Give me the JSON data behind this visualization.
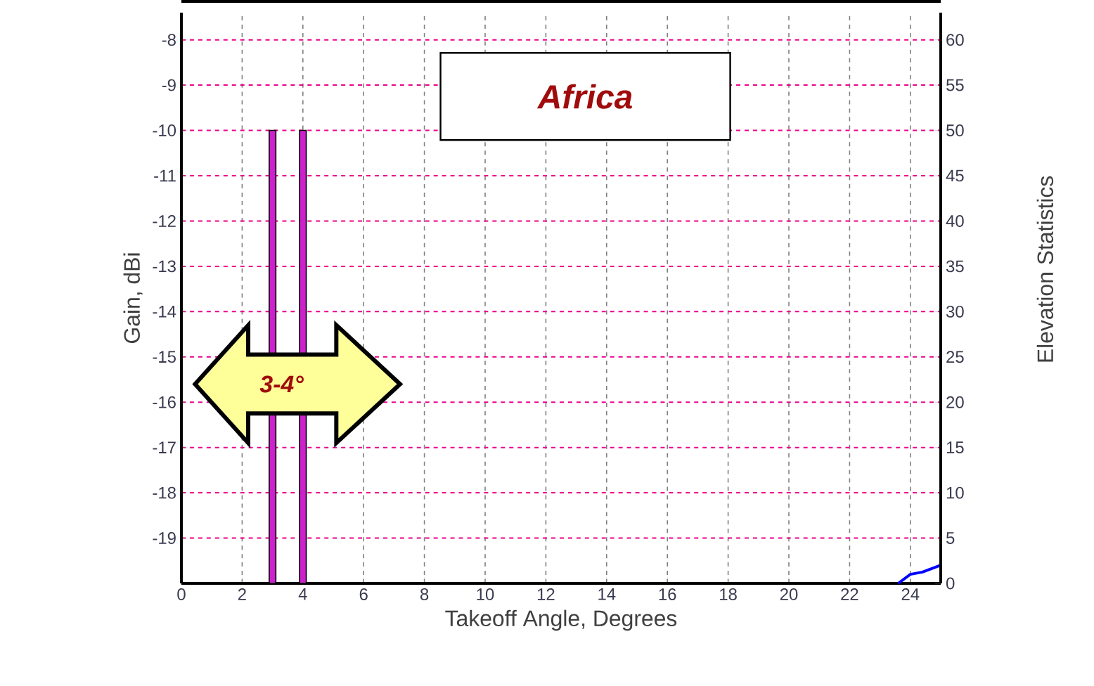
{
  "chart_data": {
    "type": "bar",
    "xlabel": "Takeoff Angle, Degrees",
    "ylabel": "Gain, dBi",
    "y2label": "Elevation Statistics",
    "annotations": [
      "Africa",
      "3-4°"
    ],
    "xlim": [
      0,
      25
    ],
    "xticks": [
      0,
      2,
      4,
      6,
      8,
      10,
      12,
      14,
      16,
      18,
      20,
      22,
      24
    ],
    "ylim": [
      -20,
      -7.4
    ],
    "yticks": [
      -19,
      -18,
      -17,
      -16,
      -15,
      -14,
      -13,
      -12,
      -11,
      -10,
      -9,
      -8
    ],
    "y2lim": [
      0,
      63
    ],
    "y2ticks": [
      0,
      5,
      10,
      15,
      20,
      25,
      30,
      35,
      40,
      45,
      50,
      55,
      60
    ],
    "grid": true,
    "series": [
      {
        "axis": "y2",
        "color": "#cc22cc",
        "x": [
          3,
          4
        ],
        "values": [
          50,
          50
        ]
      },
      {
        "type": "line",
        "color": "#0000ff",
        "x": [
          23.6,
          24,
          24.4,
          25
        ],
        "values": [
          -20,
          -19.8,
          -19.75,
          -19.6
        ]
      }
    ]
  }
}
